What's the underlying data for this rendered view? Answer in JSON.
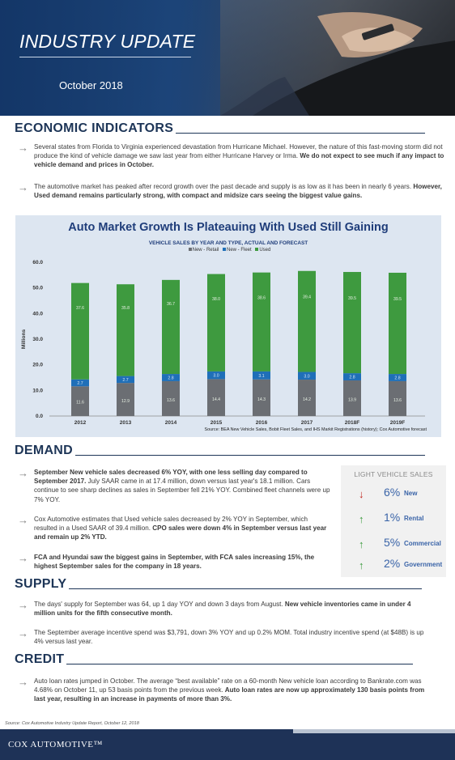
{
  "hero": {
    "title": "INDUSTRY UPDATE",
    "date": "October 2018"
  },
  "sections": {
    "economic": "ECONOMIC INDICATORS",
    "demand": "DEMAND",
    "supply": "SUPPLY",
    "credit": "CREDIT"
  },
  "economic_bullets": [
    {
      "lead": "Several states from Florida to Virginia experienced devastation from Hurricane Michael. However, the nature of this fast-moving storm did not produce the kind of vehicle damage we saw last year from either Hurricane Harvey or Irma.",
      "rest": " We do not expect to see much if any impact to vehicle demand and prices in October."
    },
    {
      "lead": "The automotive market has peaked after record growth over the past decade and supply is as low as it has been in nearly 6 years.",
      "rest": " However, Used demand remains particularly strong, with compact and midsize cars seeing the biggest value gains."
    }
  ],
  "chart_data": {
    "type": "bar",
    "stacked": true,
    "title": "Auto Market Growth Is Plateauing With Used Still Gaining",
    "subtitle": "VEHICLE SALES BY YEAR AND TYPE, ACTUAL AND FORECAST",
    "ylabel": "Millions",
    "ylim": [
      0,
      60
    ],
    "yticks": [
      "0.0",
      "10.0",
      "20.0",
      "30.0",
      "40.0",
      "50.0",
      "60.0"
    ],
    "categories": [
      "2012",
      "2013",
      "2014",
      "2015",
      "2016",
      "2017",
      "2018F",
      "2019F"
    ],
    "series": [
      {
        "name": "New - Retail",
        "color": "#6b6e73",
        "values": [
          11.6,
          12.9,
          13.6,
          14.4,
          14.3,
          14.2,
          13.9,
          13.6
        ],
        "labels": [
          "11.6",
          "12.9",
          "13.6",
          "14.4",
          "14.3",
          "14.2",
          "13.9",
          "13.6"
        ]
      },
      {
        "name": "New - Fleet",
        "color": "#1f6fb8",
        "values": [
          2.7,
          2.7,
          2.8,
          3.0,
          3.1,
          3.0,
          2.8,
          2.8
        ],
        "labels": [
          "2.7",
          "2.7",
          "2.8",
          "3.0",
          "3.1",
          "3.0",
          "2.8",
          "2.8"
        ]
      },
      {
        "name": "Used",
        "color": "#3e9a3f",
        "values": [
          37.6,
          35.8,
          36.7,
          38.0,
          38.6,
          39.4,
          39.5,
          39.5
        ],
        "labels": [
          "37.6",
          "35.8",
          "36.7",
          "38.0",
          "38.6",
          "39.4",
          "39.5",
          "39.5"
        ]
      }
    ],
    "legend_position": "top-center",
    "grid": false,
    "source": "Source: BEA New Vehicle Sales, Bobit Fleet Sales, and IHS Markit Registrations (history); Cox Automotive forecast"
  },
  "demand_bullets": [
    {
      "lead": "September New vehicle sales decreased 6% YOY, with one less selling day compared to September 2017.",
      "rest": " July SAAR came in at 17.4 million, down versus last year's 18.1 million. Cars continue to see sharp declines as sales in September fell 21% YOY. Combined fleet channels were up 7% YOY."
    },
    {
      "lead": "Cox Automotive estimates that Used vehicle sales decreased by 2% YOY in September, which resulted in a Used SAAR of 39.4 million.",
      "rest": " CPO sales were down 4% in September versus last year and remain up 2% YTD."
    },
    {
      "lead": "FCA and Hyundai saw the biggest gains in September, with FCA sales increasing 15%, the highest September sales for the company in 18 years.",
      "rest": ""
    }
  ],
  "light_vehicle_sales": {
    "title": "LIGHT VEHICLE SALES",
    "items": [
      {
        "direction": "down",
        "arrow": "↓",
        "color": "#c0261f",
        "pct": "6%",
        "label": "New"
      },
      {
        "direction": "up",
        "arrow": "↑",
        "color": "#3b9b3e",
        "pct": "1%",
        "label": "Rental"
      },
      {
        "direction": "up",
        "arrow": "↑",
        "color": "#3b9b3e",
        "pct": "5%",
        "label": "Commercial"
      },
      {
        "direction": "up",
        "arrow": "↑",
        "color": "#3b9b3e",
        "pct": "2%",
        "label": "Government"
      }
    ]
  },
  "supply_bullets": [
    {
      "lead": "The days' supply for September was 64, up 1 day YOY and down 3 days from August.",
      "rest": " New vehicle inventories came in under 4 million units for the fifth consecutive month."
    },
    {
      "lead": "The September average incentive spend was $3,791, down 3% YOY and up 0.2% MOM. Total industry incentive spend (at $48B) is up 4% versus last year.",
      "rest": ""
    }
  ],
  "credit_bullets": [
    {
      "lead": "Auto loan rates jumped in October. The average “best available” rate on a 60-month New vehicle loan according to Bankrate.com was 4.68% on October 11, up 53 basis points from the previous week.",
      "rest": " Auto loan rates are now up approximately 130 basis points from last year, resulting in an increase in payments of more than 3%."
    }
  ],
  "footer": {
    "source_note": "Source: Cox Automotive Industry Update Report, October 12, 2018",
    "brand": "COX AUTOMOTIVE™"
  }
}
